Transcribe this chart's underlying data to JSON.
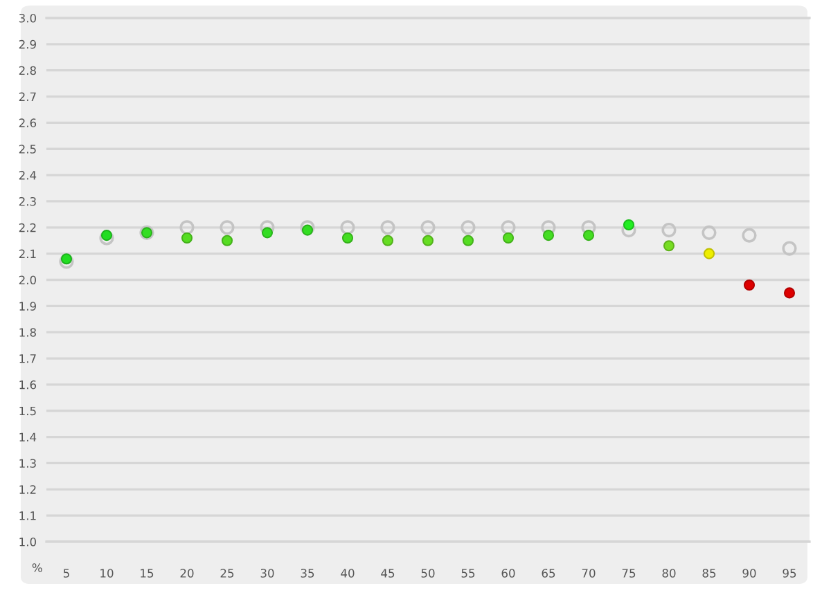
{
  "chart_data": {
    "type": "scatter",
    "xlabel": "%",
    "categories": [
      "5",
      "10",
      "15",
      "20",
      "25",
      "30",
      "35",
      "40",
      "45",
      "50",
      "55",
      "60",
      "65",
      "70",
      "75",
      "80",
      "85",
      "90",
      "95"
    ],
    "ylim": [
      1.0,
      3.0
    ],
    "yticks": [
      {
        "value": 1.0,
        "label": "1.0"
      },
      1.1,
      1.2,
      1.3,
      1.4,
      1.5,
      1.6,
      1.7,
      1.8,
      1.9,
      {
        "value": 2.0,
        "label": "2.0"
      },
      2.1,
      2.2,
      2.3,
      2.4,
      2.5,
      2.6,
      2.7,
      2.8,
      2.9,
      {
        "value": 3.0,
        "label": "3.0"
      }
    ],
    "grid": "y",
    "marker": "circle",
    "series": [
      {
        "color": "#c4c4c4",
        "values": [
          2.07,
          2.16,
          2.18,
          2.2,
          2.2,
          2.2,
          2.2,
          2.2,
          2.2,
          2.2,
          2.2,
          2.2,
          2.2,
          2.2,
          2.19,
          2.19,
          2.18,
          2.17,
          2.12
        ]
      },
      {
        "colors": [
          "#22dd22",
          "#22dd22",
          "#33dd22",
          "#55dd22",
          "#55dd22",
          "#33dd22",
          "#33dd22",
          "#44dd22",
          "#66dd22",
          "#66dd22",
          "#55dd22",
          "#55dd22",
          "#44dd22",
          "#44dd22",
          "#22ee22",
          "#77dd22",
          "#eeee00",
          "#dd0000",
          "#dd0000"
        ],
        "values": [
          2.08,
          2.17,
          2.18,
          2.16,
          2.15,
          2.18,
          2.19,
          2.16,
          2.15,
          2.15,
          2.15,
          2.16,
          2.17,
          2.17,
          2.21,
          2.13,
          2.1,
          1.98,
          1.95
        ]
      }
    ]
  }
}
